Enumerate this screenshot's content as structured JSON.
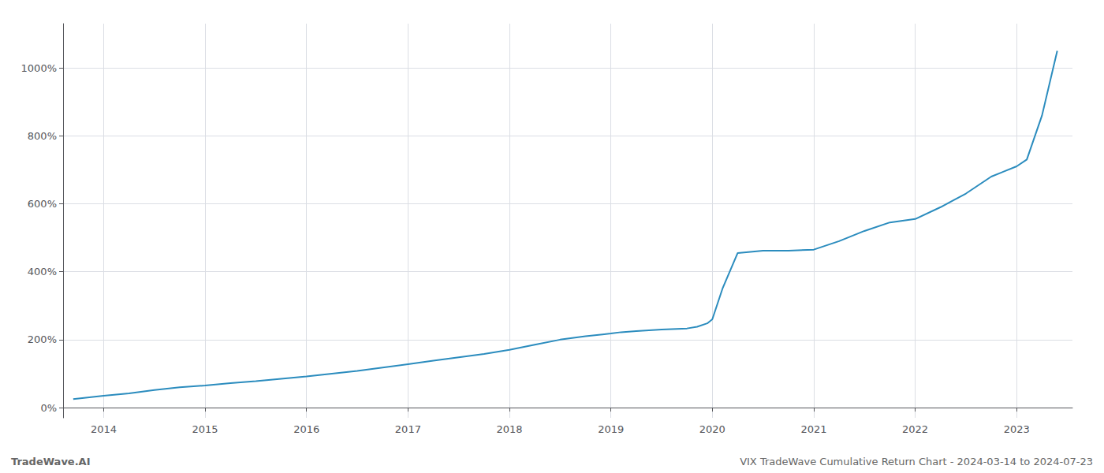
{
  "chart_data": {
    "type": "line",
    "annotations": [
      "TradeWave.AI",
      "VIX TradeWave Cumulative Return Chart - 2024-03-14 to 2024-07-23"
    ],
    "x": [
      2013.7,
      2014.0,
      2014.25,
      2014.5,
      2014.75,
      2015.0,
      2015.25,
      2015.5,
      2015.75,
      2016.0,
      2016.25,
      2016.5,
      2016.75,
      2017.0,
      2017.25,
      2017.5,
      2017.75,
      2018.0,
      2018.25,
      2018.5,
      2018.75,
      2019.0,
      2019.1,
      2019.25,
      2019.5,
      2019.75,
      2019.85,
      2019.95,
      2020.0,
      2020.1,
      2020.25,
      2020.5,
      2020.75,
      2021.0,
      2021.25,
      2021.5,
      2021.75,
      2022.0,
      2022.25,
      2022.5,
      2022.75,
      2023.0,
      2023.1,
      2023.25,
      2023.4
    ],
    "values": [
      25,
      35,
      42,
      52,
      60,
      65,
      72,
      78,
      85,
      92,
      100,
      108,
      118,
      128,
      138,
      148,
      158,
      170,
      185,
      200,
      210,
      218,
      222,
      225,
      230,
      233,
      238,
      248,
      260,
      350,
      455,
      462,
      462,
      465,
      490,
      520,
      545,
      555,
      590,
      630,
      680,
      710,
      730,
      860,
      1050
    ],
    "color": "#2b8cbe",
    "xlim": [
      2013.6,
      2023.55
    ],
    "xticks": [
      2014,
      2015,
      2016,
      2017,
      2018,
      2019,
      2020,
      2021,
      2022,
      2023
    ],
    "ylim": [
      -30,
      1130
    ],
    "yticks": [
      {
        "value": 0,
        "label": "0%"
      },
      {
        "value": 200,
        "label": "200%"
      },
      {
        "value": 400,
        "label": "400%"
      },
      {
        "value": 600,
        "label": "600%"
      },
      {
        "value": 800,
        "label": "800%"
      },
      {
        "value": 1000,
        "label": "1000%"
      }
    ],
    "grid": true
  }
}
